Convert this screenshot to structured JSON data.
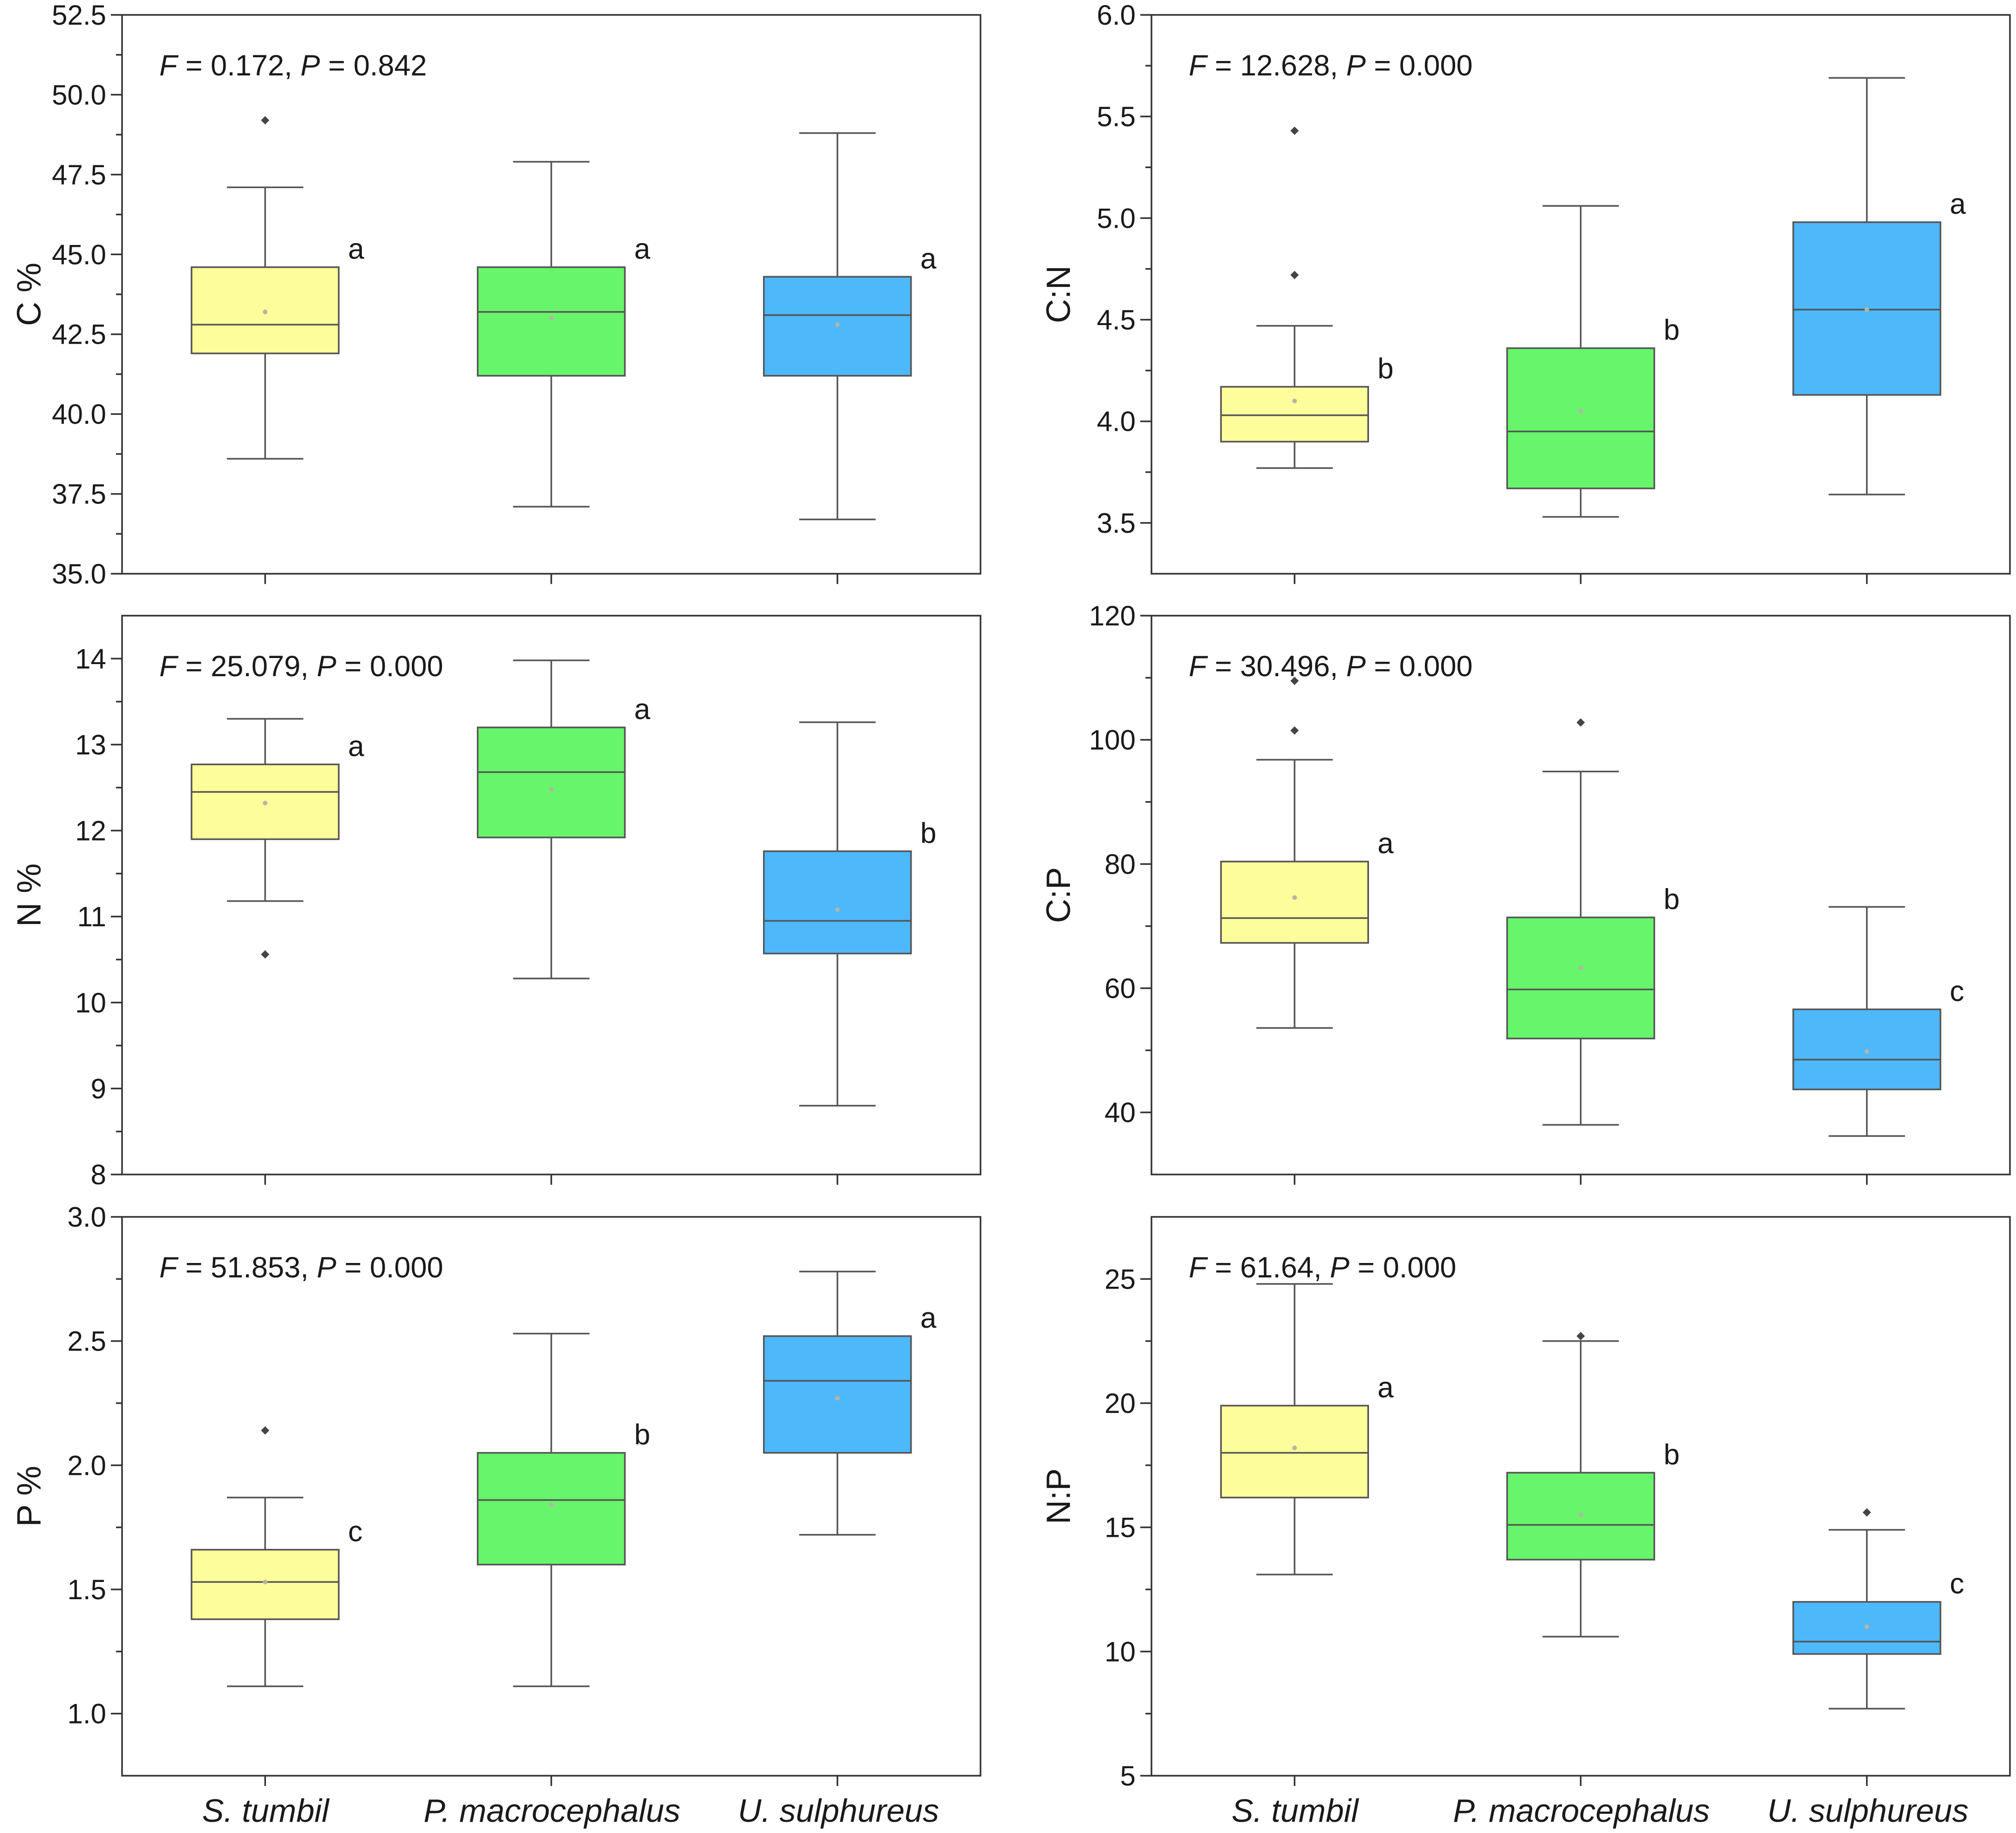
{
  "colors": {
    "S. tumbil": "#fdfd9b",
    "P. macrocephalus": "#67f56b",
    "U. sulphureus": "#4db8fa"
  },
  "categories": [
    "S. tumbil",
    "P. macrocephalus",
    "U. sulphureus"
  ],
  "chart_data": [
    {
      "type": "box",
      "id": "c",
      "ylabel": "C %",
      "ylim": [
        35.0,
        52.5
      ],
      "ticks": [
        "35.0",
        "37.5",
        "40.0",
        "42.5",
        "45.0",
        "47.5",
        "50.0",
        "52.5"
      ],
      "stat_f": "0.172",
      "stat_p": "0.842",
      "boxes": [
        {
          "min": 38.6,
          "q1": 41.9,
          "median": 42.8,
          "q3": 44.6,
          "max": 47.1,
          "mean": 43.2,
          "outliers": [
            49.2
          ],
          "letter": "a"
        },
        {
          "min": 37.1,
          "q1": 41.2,
          "median": 43.2,
          "q3": 44.6,
          "max": 47.9,
          "mean": 43.0,
          "outliers": [],
          "letter": "a"
        },
        {
          "min": 36.7,
          "q1": 41.2,
          "median": 43.1,
          "q3": 44.3,
          "max": 48.8,
          "mean": 42.8,
          "outliers": [],
          "letter": "a"
        }
      ]
    },
    {
      "type": "box",
      "id": "cn",
      "ylabel": "C:N",
      "ylim": [
        3.25,
        6.0
      ],
      "ticks": [
        "3.5",
        "4.0",
        "4.5",
        "5.0",
        "5.5",
        "6.0"
      ],
      "stat_f": "12.628",
      "stat_p": "0.000",
      "boxes": [
        {
          "min": 3.77,
          "q1": 3.9,
          "median": 4.03,
          "q3": 4.17,
          "max": 4.47,
          "mean": 4.1,
          "outliers": [
            4.72,
            5.43
          ],
          "letter": "b"
        },
        {
          "min": 3.53,
          "q1": 3.67,
          "median": 3.95,
          "q3": 4.36,
          "max": 5.06,
          "mean": 4.05,
          "outliers": [],
          "letter": "b"
        },
        {
          "min": 3.64,
          "q1": 4.13,
          "median": 4.55,
          "q3": 4.98,
          "max": 5.69,
          "mean": 4.55,
          "outliers": [],
          "letter": "a"
        }
      ]
    },
    {
      "type": "box",
      "id": "n",
      "ylabel": "N %",
      "ylim": [
        8,
        14.5
      ],
      "ticks": [
        "8",
        "9",
        "10",
        "11",
        "12",
        "13",
        "14"
      ],
      "stat_f": "25.079",
      "stat_p": "0.000",
      "boxes": [
        {
          "min": 11.18,
          "q1": 11.9,
          "median": 12.45,
          "q3": 12.77,
          "max": 13.3,
          "mean": 12.32,
          "outliers": [
            10.56
          ],
          "letter": "a"
        },
        {
          "min": 10.28,
          "q1": 11.92,
          "median": 12.68,
          "q3": 13.2,
          "max": 13.98,
          "mean": 12.48,
          "outliers": [],
          "letter": "a"
        },
        {
          "min": 8.8,
          "q1": 10.57,
          "median": 10.95,
          "q3": 11.76,
          "max": 13.26,
          "mean": 11.08,
          "outliers": [],
          "letter": "b"
        }
      ]
    },
    {
      "type": "box",
      "id": "cp",
      "ylabel": "C:P",
      "ylim": [
        30,
        120
      ],
      "ticks": [
        "40",
        "60",
        "80",
        "100",
        "120"
      ],
      "stat_f": "30.496",
      "stat_p": "0.000",
      "boxes": [
        {
          "min": 53.6,
          "q1": 67.3,
          "median": 71.3,
          "q3": 80.4,
          "max": 96.8,
          "mean": 74.6,
          "outliers": [
            101.5,
            109.5
          ],
          "letter": "a"
        },
        {
          "min": 38.0,
          "q1": 51.9,
          "median": 59.8,
          "q3": 71.4,
          "max": 94.9,
          "mean": 63.3,
          "outliers": [
            102.8
          ],
          "letter": "b"
        },
        {
          "min": 36.2,
          "q1": 43.7,
          "median": 48.5,
          "q3": 56.6,
          "max": 73.1,
          "mean": 49.8,
          "outliers": [],
          "letter": "c"
        }
      ]
    },
    {
      "type": "box",
      "id": "p",
      "ylabel": "P %",
      "ylim": [
        0.75,
        3.0
      ],
      "ticks": [
        "1.0",
        "1.5",
        "2.0",
        "2.5",
        "3.0"
      ],
      "stat_f": "51.853",
      "stat_p": "0.000",
      "boxes": [
        {
          "min": 1.11,
          "q1": 1.38,
          "median": 1.53,
          "q3": 1.66,
          "max": 1.87,
          "mean": 1.53,
          "outliers": [
            2.14
          ],
          "letter": "c"
        },
        {
          "min": 1.11,
          "q1": 1.6,
          "median": 1.86,
          "q3": 2.05,
          "max": 2.53,
          "mean": 1.84,
          "outliers": [],
          "letter": "b"
        },
        {
          "min": 1.72,
          "q1": 2.05,
          "median": 2.34,
          "q3": 2.52,
          "max": 2.78,
          "mean": 2.27,
          "outliers": [],
          "letter": "a"
        }
      ]
    },
    {
      "type": "box",
      "id": "np",
      "ylabel": "N:P",
      "ylim": [
        5,
        27.5
      ],
      "ticks": [
        "5",
        "10",
        "15",
        "20",
        "25"
      ],
      "stat_f": "61.64",
      "stat_p": "0.000",
      "boxes": [
        {
          "min": 13.1,
          "q1": 16.2,
          "median": 18.0,
          "q3": 19.9,
          "max": 24.8,
          "mean": 18.2,
          "outliers": [],
          "letter": "a"
        },
        {
          "min": 10.6,
          "q1": 13.7,
          "median": 15.1,
          "q3": 17.2,
          "max": 22.5,
          "mean": 15.5,
          "outliers": [
            22.7
          ],
          "letter": "b"
        },
        {
          "min": 7.7,
          "q1": 9.9,
          "median": 10.4,
          "q3": 12.0,
          "max": 14.9,
          "mean": 11.0,
          "outliers": [
            15.6
          ],
          "letter": "c"
        }
      ]
    }
  ]
}
